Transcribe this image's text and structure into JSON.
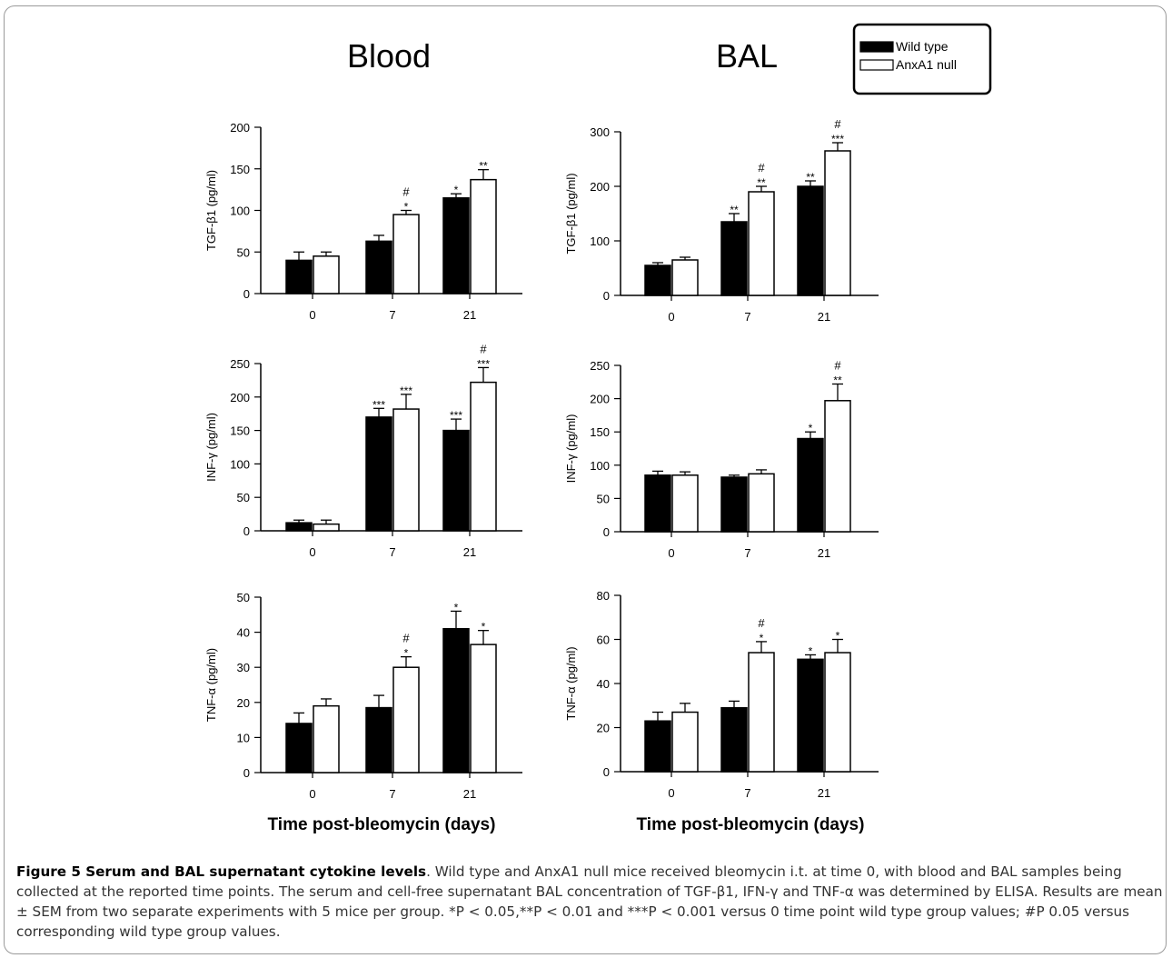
{
  "figure": {
    "columns": [
      "Blood",
      "BAL"
    ],
    "legend": [
      {
        "label": "Wild type",
        "color": "#000000"
      },
      {
        "label": "AnxA1 null",
        "color": "#ffffff"
      }
    ],
    "xlabel": "Time post-bleomycin (days)"
  },
  "chart_data": [
    {
      "type": "bar",
      "panel": "Blood",
      "ylabel": "TGF-β1 (pg/ml)",
      "categories": [
        "0",
        "7",
        "21"
      ],
      "ylim": [
        0,
        200
      ],
      "yticks": [
        0,
        50,
        100,
        150,
        200
      ],
      "series": [
        {
          "name": "Wild type",
          "values": [
            40,
            63,
            115
          ],
          "errors": [
            10,
            7,
            5
          ]
        },
        {
          "name": "AnxA1 null",
          "values": [
            45,
            95,
            137
          ],
          "errors": [
            5,
            5,
            12
          ]
        }
      ],
      "annotations": [
        [
          "",
          ""
        ],
        [
          "",
          "*\n#"
        ],
        [
          "*",
          "**"
        ]
      ]
    },
    {
      "type": "bar",
      "panel": "BAL",
      "ylabel": "TGF-β1 (pg/ml)",
      "categories": [
        "0",
        "7",
        "21"
      ],
      "ylim": [
        0,
        300
      ],
      "yticks": [
        0,
        100,
        200,
        300
      ],
      "series": [
        {
          "name": "Wild type",
          "values": [
            55,
            135,
            200
          ],
          "errors": [
            5,
            15,
            10
          ]
        },
        {
          "name": "AnxA1 null",
          "values": [
            65,
            190,
            265
          ],
          "errors": [
            5,
            10,
            15
          ]
        }
      ],
      "annotations": [
        [
          "",
          ""
        ],
        [
          "**",
          "**\n#"
        ],
        [
          "**",
          "***\n#"
        ]
      ]
    },
    {
      "type": "bar",
      "panel": "Blood",
      "ylabel": "INF-γ (pg/ml)",
      "categories": [
        "0",
        "7",
        "21"
      ],
      "ylim": [
        0,
        250
      ],
      "yticks": [
        0,
        50,
        100,
        150,
        200,
        250
      ],
      "series": [
        {
          "name": "Wild type",
          "values": [
            12,
            170,
            150
          ],
          "errors": [
            4,
            13,
            17
          ]
        },
        {
          "name": "AnxA1 null",
          "values": [
            10,
            182,
            222
          ],
          "errors": [
            6,
            22,
            22
          ]
        }
      ],
      "annotations": [
        [
          "",
          ""
        ],
        [
          "***",
          "***"
        ],
        [
          "***",
          "***\n#"
        ]
      ]
    },
    {
      "type": "bar",
      "panel": "BAL",
      "ylabel": "INF-γ (pg/ml)",
      "categories": [
        "0",
        "7",
        "21"
      ],
      "ylim": [
        0,
        250
      ],
      "yticks": [
        0,
        50,
        100,
        150,
        200,
        250
      ],
      "series": [
        {
          "name": "Wild type",
          "values": [
            85,
            82,
            140
          ],
          "errors": [
            6,
            3,
            10
          ]
        },
        {
          "name": "AnxA1 null",
          "values": [
            85,
            87,
            197
          ],
          "errors": [
            5,
            6,
            25
          ]
        }
      ],
      "annotations": [
        [
          "",
          ""
        ],
        [
          "",
          ""
        ],
        [
          "*",
          "**\n#"
        ]
      ]
    },
    {
      "type": "bar",
      "panel": "Blood",
      "ylabel": "TNF-α (pg/ml)",
      "categories": [
        "0",
        "7",
        "21"
      ],
      "ylim": [
        0,
        50
      ],
      "yticks": [
        0,
        10,
        20,
        30,
        40,
        50
      ],
      "series": [
        {
          "name": "Wild type",
          "values": [
            14,
            18.5,
            41
          ],
          "errors": [
            3,
            3.5,
            5
          ]
        },
        {
          "name": "AnxA1 null",
          "values": [
            19,
            30,
            36.5
          ],
          "errors": [
            2,
            3,
            4
          ]
        }
      ],
      "annotations": [
        [
          "",
          ""
        ],
        [
          "",
          "*\n#"
        ],
        [
          "*",
          "*"
        ]
      ]
    },
    {
      "type": "bar",
      "panel": "BAL",
      "ylabel": "TNF-α (pg/ml)",
      "categories": [
        "0",
        "7",
        "21"
      ],
      "ylim": [
        0,
        80
      ],
      "yticks": [
        0,
        20,
        40,
        60,
        80
      ],
      "series": [
        {
          "name": "Wild type",
          "values": [
            23,
            29,
            51
          ],
          "errors": [
            4,
            3,
            2
          ]
        },
        {
          "name": "AnxA1 null",
          "values": [
            27,
            54,
            54
          ],
          "errors": [
            4,
            5,
            6
          ]
        }
      ],
      "annotations": [
        [
          "",
          ""
        ],
        [
          "",
          "*\n#"
        ],
        [
          "*",
          "*"
        ]
      ]
    }
  ],
  "caption": {
    "title": "Figure 5 Serum and BAL supernatant cytokine levels",
    "text": ". Wild type and AnxA1 null mice received bleomycin i.t. at time 0, with blood and BAL samples being collected at the reported time points. The serum and cell-free supernatant BAL concentration of TGF-β1, IFN-γ and TNF-α was determined by ELISA. Results are mean ± SEM from two separate experiments with 5 mice per group. *P < 0.05,**P < 0.01 and ***P < 0.001 versus 0 time point wild type group values; #P 0.05 versus corresponding wild type group values."
  }
}
